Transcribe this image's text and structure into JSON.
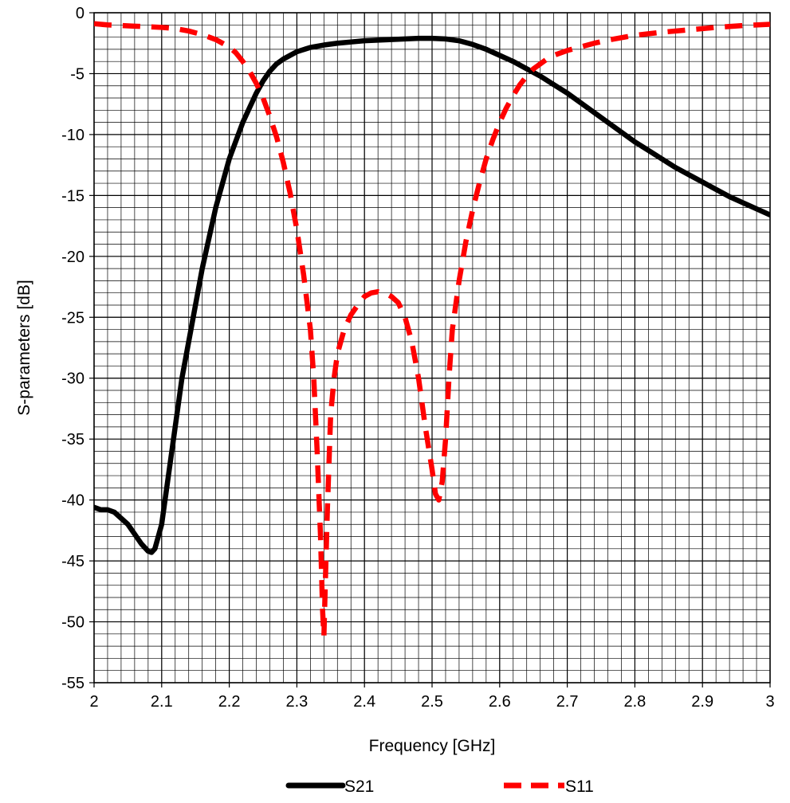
{
  "chart_data": {
    "type": "line",
    "title": "",
    "xlabel": "Frequency [GHz]",
    "ylabel": "S-parameters [dB]",
    "xlim": [
      2,
      3
    ],
    "ylim": [
      -55,
      0
    ],
    "x_ticks": [
      "2",
      "2.1",
      "2.2",
      "2.3",
      "2.4",
      "2.5",
      "2.6",
      "2.7",
      "2.8",
      "2.9",
      "3"
    ],
    "y_ticks": [
      "0",
      "-5",
      "-10",
      "-15",
      "-20",
      "-25",
      "-30",
      "-35",
      "-40",
      "-45",
      "-50",
      "-55"
    ],
    "x_tick_values": [
      2,
      2.1,
      2.2,
      2.3,
      2.4,
      2.5,
      2.6,
      2.7,
      2.8,
      2.9,
      3
    ],
    "y_tick_values": [
      0,
      -5,
      -10,
      -15,
      -20,
      -25,
      -30,
      -35,
      -40,
      -45,
      -50,
      -55
    ],
    "grid": true,
    "legend_position": "bottom",
    "series": [
      {
        "name": "S21",
        "color": "#000000",
        "style": "solid",
        "points": [
          [
            2.0,
            -40.6
          ],
          [
            2.01,
            -40.8
          ],
          [
            2.02,
            -40.8
          ],
          [
            2.03,
            -41.0
          ],
          [
            2.04,
            -41.5
          ],
          [
            2.05,
            -42.0
          ],
          [
            2.06,
            -42.8
          ],
          [
            2.07,
            -43.6
          ],
          [
            2.08,
            -44.2
          ],
          [
            2.085,
            -44.3
          ],
          [
            2.09,
            -44.0
          ],
          [
            2.1,
            -42.0
          ],
          [
            2.11,
            -38.0
          ],
          [
            2.12,
            -34.0
          ],
          [
            2.13,
            -30.0
          ],
          [
            2.14,
            -27.0
          ],
          [
            2.15,
            -24.0
          ],
          [
            2.16,
            -21.0
          ],
          [
            2.17,
            -18.5
          ],
          [
            2.18,
            -16.0
          ],
          [
            2.19,
            -14.0
          ],
          [
            2.2,
            -12.0
          ],
          [
            2.21,
            -10.5
          ],
          [
            2.22,
            -9.0
          ],
          [
            2.23,
            -7.8
          ],
          [
            2.24,
            -6.6
          ],
          [
            2.25,
            -5.6
          ],
          [
            2.26,
            -4.8
          ],
          [
            2.27,
            -4.2
          ],
          [
            2.28,
            -3.8
          ],
          [
            2.29,
            -3.5
          ],
          [
            2.3,
            -3.2
          ],
          [
            2.32,
            -2.85
          ],
          [
            2.34,
            -2.65
          ],
          [
            2.36,
            -2.5
          ],
          [
            2.38,
            -2.4
          ],
          [
            2.4,
            -2.3
          ],
          [
            2.42,
            -2.25
          ],
          [
            2.44,
            -2.2
          ],
          [
            2.46,
            -2.15
          ],
          [
            2.48,
            -2.1
          ],
          [
            2.5,
            -2.1
          ],
          [
            2.52,
            -2.15
          ],
          [
            2.54,
            -2.3
          ],
          [
            2.56,
            -2.6
          ],
          [
            2.58,
            -3.0
          ],
          [
            2.6,
            -3.5
          ],
          [
            2.62,
            -4.0
          ],
          [
            2.64,
            -4.6
          ],
          [
            2.66,
            -5.2
          ],
          [
            2.68,
            -5.9
          ],
          [
            2.7,
            -6.6
          ],
          [
            2.72,
            -7.4
          ],
          [
            2.74,
            -8.2
          ],
          [
            2.76,
            -9.0
          ],
          [
            2.78,
            -9.8
          ],
          [
            2.8,
            -10.6
          ],
          [
            2.82,
            -11.3
          ],
          [
            2.84,
            -12.0
          ],
          [
            2.86,
            -12.7
          ],
          [
            2.88,
            -13.3
          ],
          [
            2.9,
            -13.9
          ],
          [
            2.92,
            -14.5
          ],
          [
            2.94,
            -15.1
          ],
          [
            2.96,
            -15.6
          ],
          [
            2.98,
            -16.1
          ],
          [
            3.0,
            -16.6
          ]
        ]
      },
      {
        "name": "S11",
        "color": "#ff0000",
        "style": "dashed",
        "points": [
          [
            2.0,
            -0.9
          ],
          [
            2.02,
            -1.0
          ],
          [
            2.04,
            -1.05
          ],
          [
            2.06,
            -1.1
          ],
          [
            2.08,
            -1.15
          ],
          [
            2.1,
            -1.2
          ],
          [
            2.12,
            -1.3
          ],
          [
            2.14,
            -1.5
          ],
          [
            2.16,
            -1.8
          ],
          [
            2.18,
            -2.2
          ],
          [
            2.2,
            -2.8
          ],
          [
            2.21,
            -3.3
          ],
          [
            2.22,
            -4.0
          ],
          [
            2.23,
            -4.8
          ],
          [
            2.24,
            -5.8
          ],
          [
            2.25,
            -7.0
          ],
          [
            2.26,
            -8.5
          ],
          [
            2.27,
            -10.2
          ],
          [
            2.28,
            -12.3
          ],
          [
            2.29,
            -14.8
          ],
          [
            2.3,
            -17.8
          ],
          [
            2.31,
            -21.5
          ],
          [
            2.32,
            -26.0
          ],
          [
            2.325,
            -30.0
          ],
          [
            2.33,
            -36.0
          ],
          [
            2.335,
            -43.0
          ],
          [
            2.338,
            -49.0
          ],
          [
            2.34,
            -51.2
          ],
          [
            2.342,
            -47.0
          ],
          [
            2.345,
            -41.0
          ],
          [
            2.35,
            -33.0
          ],
          [
            2.355,
            -30.0
          ],
          [
            2.36,
            -28.0
          ],
          [
            2.37,
            -26.0
          ],
          [
            2.38,
            -24.8
          ],
          [
            2.39,
            -24.0
          ],
          [
            2.4,
            -23.3
          ],
          [
            2.41,
            -23.0
          ],
          [
            2.42,
            -22.9
          ],
          [
            2.43,
            -23.0
          ],
          [
            2.44,
            -23.3
          ],
          [
            2.45,
            -23.8
          ],
          [
            2.46,
            -25.0
          ],
          [
            2.47,
            -27.0
          ],
          [
            2.48,
            -30.0
          ],
          [
            2.49,
            -34.0
          ],
          [
            2.5,
            -37.5
          ],
          [
            2.505,
            -39.5
          ],
          [
            2.51,
            -40.0
          ],
          [
            2.515,
            -38.5
          ],
          [
            2.52,
            -35.0
          ],
          [
            2.525,
            -30.0
          ],
          [
            2.53,
            -26.0
          ],
          [
            2.54,
            -22.0
          ],
          [
            2.55,
            -18.8
          ],
          [
            2.56,
            -16.2
          ],
          [
            2.57,
            -14.0
          ],
          [
            2.58,
            -12.0
          ],
          [
            2.59,
            -10.4
          ],
          [
            2.6,
            -9.0
          ],
          [
            2.61,
            -7.8
          ],
          [
            2.62,
            -6.8
          ],
          [
            2.63,
            -5.9
          ],
          [
            2.64,
            -5.2
          ],
          [
            2.65,
            -4.6
          ],
          [
            2.66,
            -4.2
          ],
          [
            2.67,
            -3.8
          ],
          [
            2.68,
            -3.5
          ],
          [
            2.7,
            -3.1
          ],
          [
            2.72,
            -2.8
          ],
          [
            2.74,
            -2.5
          ],
          [
            2.76,
            -2.25
          ],
          [
            2.78,
            -2.05
          ],
          [
            2.8,
            -1.85
          ],
          [
            2.84,
            -1.6
          ],
          [
            2.88,
            -1.4
          ],
          [
            2.92,
            -1.2
          ],
          [
            2.96,
            -1.05
          ],
          [
            3.0,
            -0.95
          ]
        ]
      }
    ]
  }
}
